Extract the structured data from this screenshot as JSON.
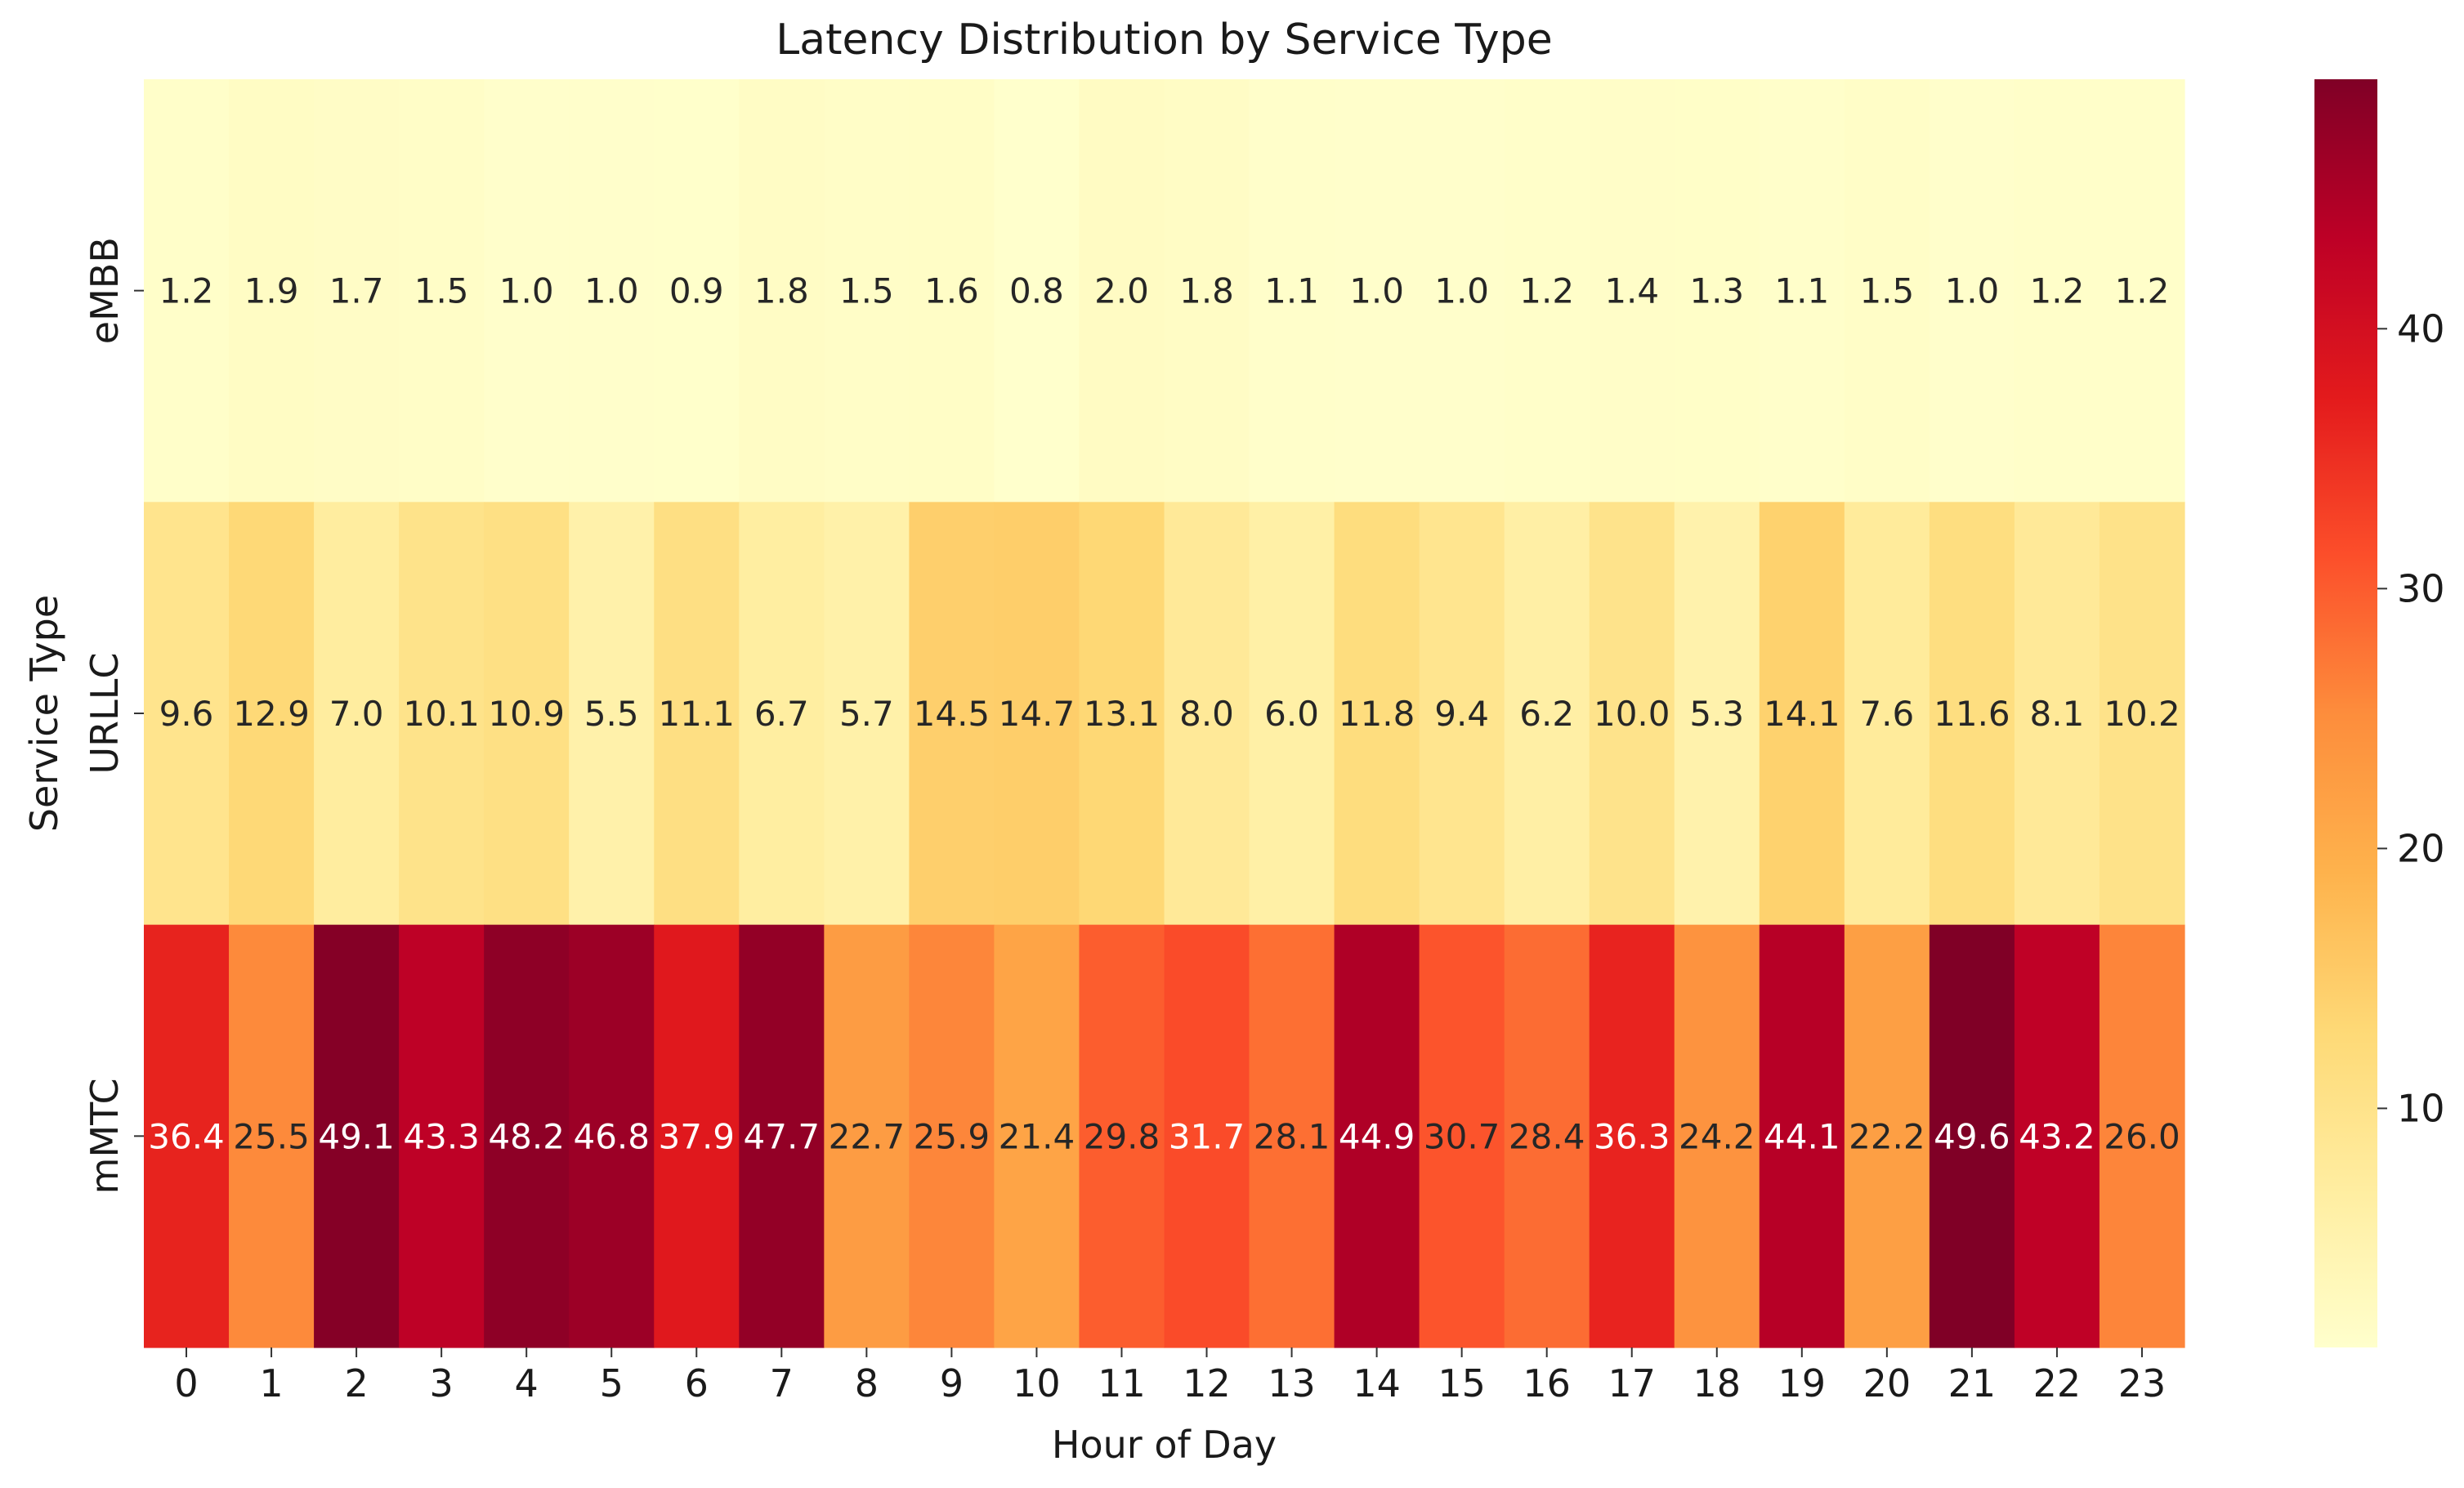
{
  "chart_data": {
    "type": "heatmap",
    "title": "Latency Distribution by Service Type",
    "xlabel": "Hour of Day",
    "ylabel": "Service Type",
    "x_categories": [
      "0",
      "1",
      "2",
      "3",
      "4",
      "5",
      "6",
      "7",
      "8",
      "9",
      "10",
      "11",
      "12",
      "13",
      "14",
      "15",
      "16",
      "17",
      "18",
      "19",
      "20",
      "21",
      "22",
      "23"
    ],
    "y_categories": [
      "eMBB",
      "URLLC",
      "mMTC"
    ],
    "values": [
      [
        1.2,
        1.9,
        1.7,
        1.5,
        1.0,
        1.0,
        0.9,
        1.8,
        1.5,
        1.6,
        0.8,
        2.0,
        1.8,
        1.1,
        1.0,
        1.0,
        1.2,
        1.4,
        1.3,
        1.1,
        1.5,
        1.0,
        1.2,
        1.2
      ],
      [
        9.6,
        12.9,
        7.0,
        10.1,
        10.9,
        5.5,
        11.1,
        6.7,
        5.7,
        14.5,
        14.7,
        13.1,
        8.0,
        6.0,
        11.8,
        9.4,
        6.2,
        10.0,
        5.3,
        14.1,
        7.6,
        11.6,
        8.1,
        10.2
      ],
      [
        36.4,
        25.5,
        49.1,
        43.3,
        48.2,
        46.8,
        37.9,
        47.7,
        22.7,
        25.9,
        21.4,
        29.8,
        31.7,
        28.1,
        44.9,
        30.7,
        28.4,
        36.3,
        24.2,
        44.1,
        22.2,
        49.6,
        43.2,
        26.0
      ]
    ],
    "colormap": "YlOrRd",
    "vmin": 0.8,
    "vmax": 49.6,
    "colorbar_ticks": [
      10,
      20,
      30,
      40
    ],
    "annotated": true,
    "value_format": "0.1f",
    "grid": false
  }
}
